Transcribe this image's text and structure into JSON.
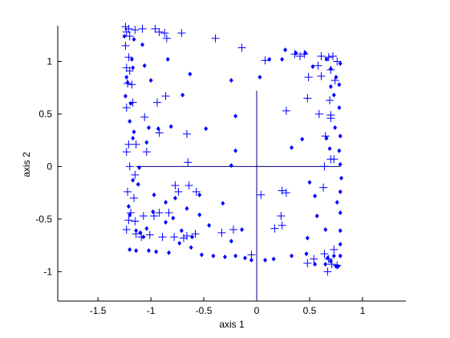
{
  "chart_data": {
    "type": "scatter",
    "xlabel": "axis 1",
    "ylabel": "axis 2",
    "xlim": [
      -1.88,
      1.41
    ],
    "ylim": [
      -1.28,
      1.34
    ],
    "xticks": [
      -1.5,
      -1,
      -0.5,
      0,
      0.5,
      1
    ],
    "yticks": [
      -1,
      -0.5,
      0,
      0.5,
      1
    ],
    "series": [
      {
        "marker": "plus",
        "color": "#0000ff",
        "x": [
          -1.24,
          -1.21,
          -1.23,
          -1.2,
          -1.15,
          -1.08,
          -0.96,
          -0.92,
          -0.87,
          -0.85,
          -0.71,
          -0.39,
          -1.24,
          -1.21,
          -1.23,
          -1.2,
          -1.22,
          -1.18,
          -1.23,
          -1.17,
          -1.06,
          -1.21,
          -1.14,
          -1.23,
          -1.04,
          -0.92,
          -0.66,
          -0.65,
          -0.86,
          -0.94,
          -1.2,
          -1.15,
          -1.22,
          -1.16,
          -1.19,
          -1.21,
          -1.15,
          -1.07,
          -0.92,
          -0.97,
          -0.83,
          -0.77,
          -0.74,
          -0.64,
          -0.57,
          -1.23,
          -1.14,
          -1.09,
          -1.01,
          -0.89,
          -0.78,
          -0.66,
          -0.69,
          -0.58,
          -0.33,
          -0.22,
          -0.05,
          0.04,
          0.24,
          0.28,
          0.23,
          0.24,
          0.17,
          0.28,
          0.49,
          0.48,
          0.69,
          0.7,
          0.7,
          0.59,
          0.65,
          0.7,
          0.73,
          0.63,
          0.61,
          0.58,
          0.68,
          0.72,
          0.76,
          0.7,
          0.61,
          0.74,
          0.64,
          0.48,
          0.54,
          0.64,
          0.68,
          0.73,
          0.71,
          0.67,
          0.76,
          0.45,
          0.36,
          0.41,
          0.08,
          -0.14
        ],
        "values": [
          1.33,
          1.31,
          1.28,
          1.24,
          1.3,
          1.31,
          1.31,
          1.28,
          1.27,
          1.22,
          1.27,
          1.22,
          1.15,
          1.04,
          0.94,
          0.91,
          0.79,
          0.78,
          0.56,
          0.61,
          0.47,
          0.21,
          0.21,
          0.14,
          0.14,
          0.32,
          0.31,
          0.04,
          0.67,
          0.61,
          0.0,
          -0.08,
          -0.24,
          -0.3,
          -0.44,
          -0.51,
          -0.52,
          -0.47,
          -0.44,
          -0.47,
          -0.44,
          -0.18,
          -0.24,
          -0.18,
          -0.24,
          -0.6,
          -0.64,
          -0.67,
          -0.65,
          -0.67,
          -0.67,
          -0.66,
          -0.68,
          -0.64,
          -0.63,
          -0.6,
          -0.84,
          -0.27,
          -0.23,
          -0.25,
          -0.47,
          -0.56,
          -0.59,
          0.53,
          0.85,
          0.65,
          0.63,
          0.49,
          0.46,
          0.5,
          0.29,
          0.07,
          0.07,
          -0.2,
          1.05,
          0.96,
          1.04,
          1.05,
          1.0,
          0.92,
          0.86,
          0.82,
          0.0,
          -0.92,
          -0.88,
          -0.83,
          -0.88,
          -0.79,
          -0.93,
          -1.0,
          -0.94,
          1.07,
          1.07,
          1.05,
          1.01,
          1.13
        ]
      },
      {
        "marker": "dot",
        "color": "#0000ff",
        "x": [
          -1.25,
          -1.16,
          -1.08,
          -1.18,
          -1.17,
          -1.22,
          -1.06,
          -1.0,
          -0.84,
          -0.63,
          -0.7,
          -0.81,
          -1.02,
          -0.93,
          -1.17,
          -1.04,
          -0.48,
          -0.24,
          -0.2,
          -0.2,
          -0.24,
          0.03,
          0.12,
          0.24,
          0.27,
          0.37,
          0.46,
          0.53,
          0.66,
          0.7,
          0.7,
          0.75,
          0.79,
          0.78,
          0.73,
          0.78,
          0.74,
          0.79,
          0.66,
          0.69,
          0.78,
          0.79,
          0.8,
          0.79,
          0.76,
          0.79,
          0.79,
          0.79,
          0.79,
          0.75,
          0.73,
          0.65,
          0.57,
          0.55,
          0.5,
          0.43,
          0.33,
          0.48,
          0.47,
          0.33,
          0.16,
          0.08,
          -0.05,
          -0.11,
          -0.2,
          -0.3,
          -0.41,
          -0.52,
          -0.62,
          -0.73,
          -0.83,
          -0.95,
          -1.02,
          -1.14,
          -1.2,
          -1.07,
          -1.1,
          -1.14,
          -1.04,
          -0.98,
          -0.86,
          -0.79,
          -0.71,
          -0.61,
          -0.54,
          -0.45,
          -0.24,
          -0.14,
          -0.32,
          -0.54,
          -0.66,
          -0.77,
          -0.86,
          -0.97,
          -1.2,
          -1.21,
          -1.12,
          -1.17,
          -1.11,
          -1.2,
          -1.16,
          -1.19,
          -1.23,
          -1.24,
          0.55,
          0.65,
          0.67,
          0.7,
          0.77
        ],
        "values": [
          1.24,
          1.21,
          1.16,
          1.02,
          0.94,
          0.8,
          0.96,
          0.82,
          1.02,
          0.88,
          0.68,
          0.38,
          0.37,
          0.36,
          0.27,
          0.23,
          0.36,
          0.82,
          0.48,
          0.15,
          0.01,
          0.85,
          1.02,
          1.02,
          1.11,
          1.08,
          1.08,
          0.95,
          1.02,
          0.93,
          0.76,
          0.85,
          0.98,
          0.78,
          0.68,
          0.56,
          0.37,
          0.29,
          0.27,
          0.17,
          0.15,
          0.02,
          -0.11,
          -0.24,
          -0.34,
          -0.44,
          -0.61,
          -0.74,
          -0.85,
          -0.95,
          -0.85,
          -0.6,
          -0.47,
          -0.28,
          -0.15,
          0.26,
          0.18,
          -0.68,
          -0.83,
          -0.85,
          -0.88,
          -0.89,
          -0.89,
          -0.87,
          -0.85,
          -0.86,
          -0.85,
          -0.84,
          -0.77,
          -0.73,
          -0.82,
          -0.81,
          -0.8,
          -0.8,
          -0.79,
          -0.67,
          -0.63,
          -0.61,
          -0.59,
          -0.43,
          -0.53,
          -0.49,
          -0.61,
          -0.67,
          -0.46,
          -0.56,
          -0.71,
          -0.6,
          -0.35,
          -0.27,
          -0.4,
          -0.3,
          -0.34,
          -0.27,
          -0.46,
          -0.38,
          -0.17,
          -0.13,
          -0.01,
          0.43,
          0.33,
          0.6,
          0.85,
          0.67,
          -0.93,
          -0.93,
          -0.87,
          -0.9,
          -0.95
        ]
      }
    ],
    "lines": [
      {
        "color": "#000080",
        "x": [
          -1.14,
          0.79
        ],
        "values": [
          0,
          0
        ]
      },
      {
        "color": "#000080",
        "x": [
          0,
          0
        ],
        "values": [
          0.72,
          -1.28
        ]
      }
    ]
  }
}
